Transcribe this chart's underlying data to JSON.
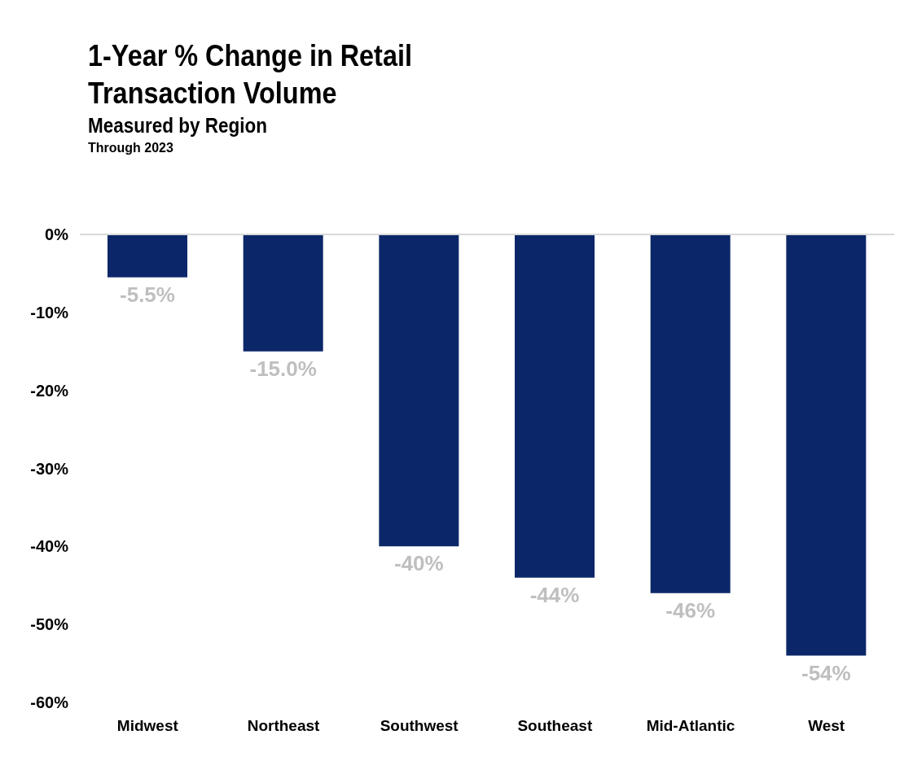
{
  "chart_data": {
    "type": "bar",
    "title": "1-Year % Change in Retail Transaction Volume",
    "subtitle": "Measured by Region",
    "annotations": [
      "Through 2023"
    ],
    "categories": [
      "Midwest",
      "Northeast",
      "Southwest",
      "Southeast",
      "Mid-Atlantic",
      "West"
    ],
    "values": [
      -5.5,
      -15.0,
      -40,
      -44,
      -46,
      -54
    ],
    "value_labels": [
      "-5.5%",
      "-15.0%",
      "-40%",
      "-44%",
      "-46%",
      "-54%"
    ],
    "color": "#0c2769",
    "ylim": [
      -60,
      0
    ],
    "yticks": [
      {
        "value": 0,
        "label": "0%"
      },
      {
        "value": -10,
        "label": "-10%"
      },
      {
        "value": -20,
        "label": "-20%"
      },
      {
        "value": -30,
        "label": "-30%"
      },
      {
        "value": -40,
        "label": "-40%"
      },
      {
        "value": -50,
        "label": "-50%"
      },
      {
        "value": -60,
        "label": "-60%"
      }
    ],
    "grid": false,
    "legend": false
  }
}
